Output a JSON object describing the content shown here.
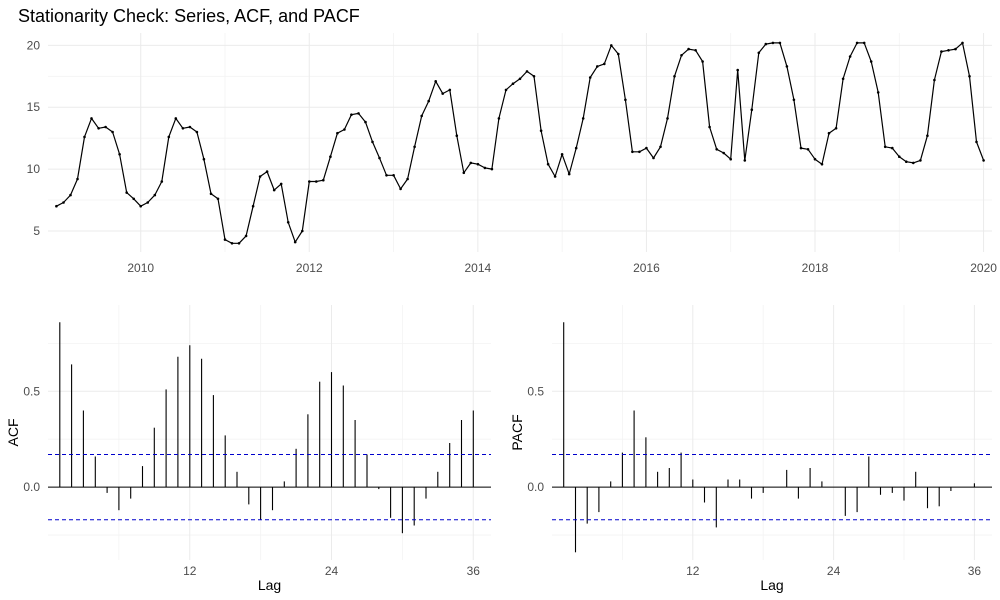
{
  "title": "Stationarity Check: Series, ACF, and PACF",
  "colors": {
    "line": "#000000",
    "ci": "#0000cc",
    "grid_major": "#ebebeb",
    "grid_minor": "#f3f3f3",
    "zero_line": "#000000"
  },
  "chart_data": [
    {
      "type": "line",
      "name": "series",
      "x_start": "2009-01",
      "x_frequency": "monthly",
      "xlim": [
        2008.9,
        2020.1
      ],
      "ylim": [
        3.3,
        21
      ],
      "xticks": [
        2010,
        2012,
        2014,
        2016,
        2018,
        2020
      ],
      "xtick_labels": [
        "2010",
        "2012",
        "2014",
        "2016",
        "2018",
        "2020"
      ],
      "yticks": [
        5,
        10,
        15,
        20
      ],
      "ytick_labels": [
        "5",
        "10",
        "15",
        "20"
      ],
      "xlabel": "",
      "ylabel": "",
      "grid": true,
      "markers": true,
      "values": [
        7.0,
        7.3,
        7.9,
        9.2,
        12.6,
        14.1,
        13.3,
        13.4,
        13.0,
        11.2,
        8.1,
        7.6,
        7.0,
        7.3,
        7.9,
        9.0,
        12.6,
        14.1,
        13.3,
        13.4,
        13.0,
        10.8,
        8.0,
        7.6,
        4.3,
        4.0,
        4.0,
        4.6,
        7.0,
        9.4,
        9.8,
        8.3,
        8.8,
        5.7,
        4.1,
        5.0,
        9.0,
        9.0,
        9.1,
        11.0,
        12.9,
        13.2,
        14.4,
        14.5,
        13.8,
        12.2,
        10.9,
        9.5,
        9.5,
        8.4,
        9.2,
        11.8,
        14.3,
        15.5,
        17.1,
        16.1,
        16.4,
        12.7,
        9.7,
        10.5,
        10.4,
        10.1,
        10.0,
        14.1,
        16.4,
        16.9,
        17.3,
        17.9,
        17.5,
        13.1,
        10.4,
        9.4,
        11.2,
        9.6,
        11.7,
        14.1,
        17.4,
        18.3,
        18.5,
        20.0,
        19.3,
        15.6,
        11.4,
        11.4,
        11.7,
        10.9,
        11.8,
        14.1,
        17.5,
        19.2,
        19.7,
        19.6,
        18.7,
        13.4,
        11.6,
        11.3,
        10.8,
        18.0,
        10.7,
        14.8,
        19.4,
        20.1,
        20.2,
        20.2,
        18.3,
        15.6,
        11.7,
        11.6,
        10.8,
        10.4,
        12.9,
        13.3,
        17.3,
        19.1,
        20.2,
        20.2,
        18.7,
        16.2,
        11.8,
        11.7,
        11.0,
        10.6,
        10.5,
        10.7,
        12.7,
        17.2,
        19.5,
        19.6,
        19.7,
        20.2,
        17.5,
        12.2,
        10.7
      ]
    },
    {
      "type": "bar",
      "name": "acf",
      "xlabel": "Lag",
      "ylabel": "ACF",
      "xlim": [
        0,
        37.5
      ],
      "ylim": [
        -0.38,
        0.95
      ],
      "xticks": [
        12,
        24,
        36
      ],
      "xtick_labels": [
        "12",
        "24",
        "36"
      ],
      "yticks": [
        0.0,
        0.5
      ],
      "ytick_labels": [
        "0.0",
        "0.5"
      ],
      "ci": 0.17,
      "grid": true,
      "x": [
        1,
        2,
        3,
        4,
        5,
        6,
        7,
        8,
        9,
        10,
        11,
        12,
        13,
        14,
        15,
        16,
        17,
        18,
        19,
        20,
        21,
        22,
        23,
        24,
        25,
        26,
        27,
        28,
        29,
        30,
        31,
        32,
        33,
        34,
        35,
        36
      ],
      "values": [
        0.86,
        0.64,
        0.4,
        0.16,
        -0.03,
        -0.12,
        -0.06,
        0.11,
        0.31,
        0.51,
        0.68,
        0.74,
        0.67,
        0.48,
        0.27,
        0.08,
        -0.09,
        -0.17,
        -0.12,
        0.03,
        0.2,
        0.38,
        0.55,
        0.6,
        0.53,
        0.35,
        0.17,
        -0.01,
        -0.16,
        -0.24,
        -0.2,
        -0.06,
        0.08,
        0.23,
        0.35,
        0.4
      ]
    },
    {
      "type": "bar",
      "name": "pacf",
      "xlabel": "Lag",
      "ylabel": "PACF",
      "xlim": [
        0,
        37.5
      ],
      "ylim": [
        -0.38,
        0.95
      ],
      "xticks": [
        12,
        24,
        36
      ],
      "xtick_labels": [
        "12",
        "24",
        "36"
      ],
      "yticks": [
        0.0,
        0.5
      ],
      "ytick_labels": [
        "0.0",
        "0.5"
      ],
      "ci": 0.17,
      "grid": true,
      "x": [
        1,
        2,
        3,
        4,
        5,
        6,
        7,
        8,
        9,
        10,
        11,
        12,
        13,
        14,
        15,
        16,
        17,
        18,
        19,
        20,
        21,
        22,
        23,
        24,
        25,
        26,
        27,
        28,
        29,
        30,
        31,
        32,
        33,
        34,
        35,
        36
      ],
      "values": [
        0.86,
        -0.34,
        -0.19,
        -0.13,
        0.03,
        0.18,
        0.4,
        0.26,
        0.08,
        0.1,
        0.18,
        0.04,
        -0.08,
        -0.21,
        0.04,
        0.04,
        -0.06,
        -0.03,
        0.0,
        0.09,
        -0.06,
        0.1,
        0.03,
        0.0,
        -0.15,
        -0.13,
        0.16,
        -0.04,
        -0.03,
        -0.07,
        0.08,
        -0.11,
        -0.1,
        -0.02,
        0.0,
        0.02
      ]
    }
  ]
}
